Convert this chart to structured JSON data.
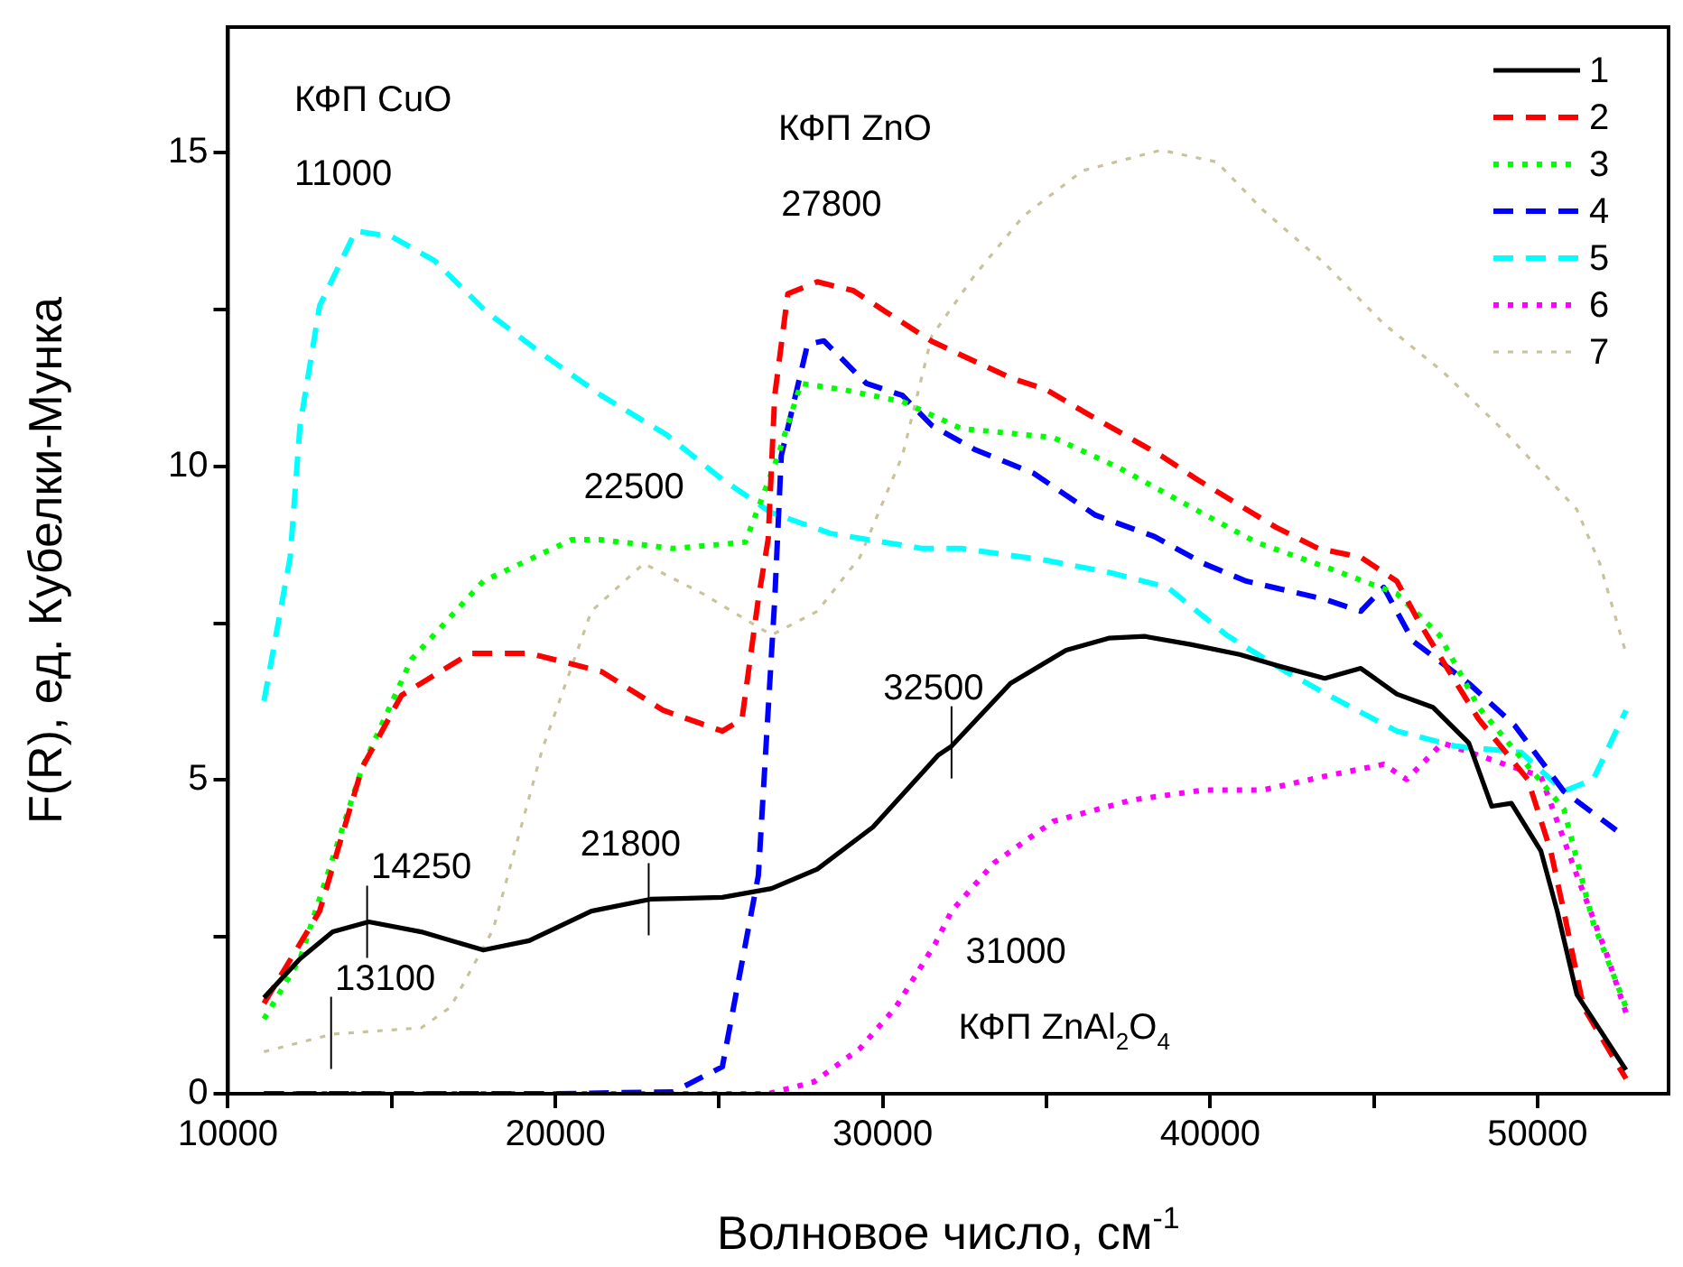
{
  "chart_data": {
    "type": "line",
    "xlabel": "Волновое число, см$^{-1}$",
    "ylabel": "F(R), ед. Кубелки-Мунка",
    "xlim": [
      10000,
      54000
    ],
    "ylim": [
      0,
      17
    ],
    "xticks": [
      10000,
      {
        "value": 15000,
        "label": null
      },
      20000,
      {
        "value": 25000,
        "label": null
      },
      30000,
      {
        "value": 35000,
        "label": null
      },
      40000,
      {
        "value": 45000,
        "label": null
      },
      50000
    ],
    "yticks": [
      0,
      {
        "value": 2.5,
        "label": null
      },
      5,
      {
        "value": 7.5,
        "label": null
      },
      10,
      {
        "value": 12.5,
        "label": null
      },
      15
    ],
    "grid": false,
    "legend": "top right",
    "series": [
      {
        "name": "1",
        "color": "#000000",
        "line_style": "solid",
        "x": [
          11100,
          12200,
          13200,
          14300,
          15900,
          17800,
          19200,
          21100,
          22900,
          25100,
          26600,
          28000,
          29700,
          31700,
          32100,
          33900,
          35600,
          36900,
          38000,
          39400,
          40900,
          42000,
          43500,
          44600,
          45700,
          46800,
          47900,
          48600,
          49200,
          50100,
          50600,
          51200,
          52700
        ],
        "values": [
          1.53,
          2.15,
          2.58,
          2.74,
          2.58,
          2.29,
          2.44,
          2.91,
          3.1,
          3.13,
          3.27,
          3.58,
          4.25,
          5.4,
          5.54,
          6.54,
          7.07,
          7.26,
          7.29,
          7.16,
          7.0,
          6.83,
          6.62,
          6.78,
          6.37,
          6.16,
          5.59,
          4.58,
          4.63,
          3.87,
          2.91,
          1.58,
          0.38
        ]
      },
      {
        "name": "2",
        "color": "#ff0000",
        "line_style": "dashed",
        "x": [
          11100,
          12800,
          14100,
          15300,
          17400,
          19200,
          21400,
          23300,
          25100,
          25700,
          26200,
          26500,
          26700,
          27100,
          28000,
          29100,
          30100,
          31500,
          33900,
          35000,
          36300,
          38500,
          39600,
          42000,
          43300,
          44600,
          45700,
          46400,
          47300,
          48200,
          49700,
          50400,
          50800,
          51400,
          52700
        ],
        "values": [
          1.44,
          2.91,
          5.2,
          6.35,
          7.02,
          7.02,
          6.73,
          6.11,
          5.78,
          5.97,
          7.89,
          8.84,
          11.13,
          12.75,
          12.94,
          12.8,
          12.46,
          11.99,
          11.41,
          11.22,
          10.82,
          10.17,
          9.79,
          9.03,
          8.69,
          8.55,
          8.17,
          7.5,
          6.73,
          5.97,
          5.01,
          3.87,
          2.91,
          1.38,
          0.24
        ]
      },
      {
        "name": "3",
        "color": "#00ff00",
        "line_style": "dotted",
        "x": [
          11100,
          12200,
          14100,
          15600,
          17800,
          20500,
          21400,
          23600,
          25800,
          26800,
          27500,
          28800,
          30600,
          32400,
          35200,
          37200,
          39200,
          41400,
          43500,
          45700,
          47000,
          48200,
          50800,
          51700,
          52700
        ],
        "values": [
          1.19,
          2.15,
          5.2,
          6.92,
          8.17,
          8.83,
          8.83,
          8.69,
          8.79,
          10.17,
          11.32,
          11.22,
          11.03,
          10.6,
          10.46,
          9.98,
          9.41,
          8.79,
          8.4,
          7.97,
          7.31,
          6.16,
          4.54,
          2.72,
          1.38
        ]
      },
      {
        "name": "4",
        "color": "#0000ff",
        "line_style": "dashed",
        "x": [
          11100,
          20000,
          23600,
          25100,
          26200,
          26700,
          26900,
          27700,
          28200,
          29500,
          30600,
          31500,
          32800,
          34600,
          36500,
          38300,
          39800,
          41100,
          43500,
          44600,
          45300,
          46200,
          47900,
          49300,
          50800,
          52400
        ],
        "values": [
          0,
          0,
          0.03,
          0.43,
          3.48,
          7.88,
          10.17,
          11.94,
          12.0,
          11.32,
          11.13,
          10.65,
          10.27,
          9.89,
          9.22,
          8.88,
          8.45,
          8.17,
          7.88,
          7.69,
          8.07,
          7.21,
          6.54,
          5.87,
          4.82,
          4.2
        ]
      },
      {
        "name": "5",
        "color": "#00ffff",
        "line_style": "dashed",
        "x": [
          11100,
          11900,
          12200,
          12800,
          13900,
          15000,
          16300,
          17900,
          19600,
          21400,
          23400,
          25100,
          26600,
          28400,
          31200,
          32400,
          35000,
          36900,
          38700,
          40500,
          42300,
          43800,
          45700,
          47500,
          49500,
          50800,
          51700,
          52700
        ],
        "values": [
          6.26,
          8.55,
          10.65,
          12.56,
          13.75,
          13.66,
          13.28,
          12.46,
          11.79,
          11.13,
          10.5,
          9.79,
          9.26,
          8.93,
          8.69,
          8.69,
          8.5,
          8.31,
          8.07,
          7.31,
          6.73,
          6.3,
          5.78,
          5.54,
          5.44,
          4.82,
          5.01,
          6.11
        ]
      },
      {
        "name": "6",
        "color": "#ff00ff",
        "line_style": "dotted",
        "x": [
          11100,
          20000,
          26500,
          27900,
          29300,
          30400,
          31600,
          32100,
          33400,
          35200,
          37600,
          39800,
          41600,
          43500,
          45300,
          46000,
          47100,
          49000,
          50100,
          51200,
          52100,
          52700
        ],
        "values": [
          0,
          0,
          0,
          0.19,
          0.72,
          1.38,
          2.39,
          2.91,
          3.68,
          4.34,
          4.68,
          4.84,
          4.84,
          5.06,
          5.25,
          5.01,
          5.59,
          5.25,
          5.06,
          3.48,
          2.24,
          1.29
        ]
      },
      {
        "name": "7",
        "color": "#c8c39b",
        "line_style": "dotted",
        "x": [
          11100,
          13200,
          15900,
          16800,
          18100,
          19600,
          21100,
          22700,
          24500,
          26600,
          28000,
          29300,
          30600,
          31500,
          32800,
          34300,
          36100,
          38500,
          40200,
          41600,
          43500,
          45300,
          47100,
          49000,
          51200,
          51900,
          52700
        ],
        "values": [
          0.67,
          0.95,
          1.05,
          1.38,
          2.62,
          5.49,
          7.69,
          8.45,
          7.97,
          7.31,
          7.69,
          8.55,
          10.17,
          12.08,
          13.04,
          13.99,
          14.71,
          15.04,
          14.85,
          14.09,
          13.23,
          12.27,
          11.51,
          10.55,
          9.31,
          8.45,
          7.02
        ]
      }
    ],
    "annotations": [
      "КФП CuO",
      "11000",
      "КФП ZnO",
      "27800",
      "22500",
      {
        "text": "32500",
        "x": 32100,
        "y": 5.6
      },
      {
        "text": "14250",
        "x": 14250,
        "y": 2.74
      },
      {
        "text": "21800",
        "x": 22850,
        "y": 3.1
      },
      {
        "text": "13100",
        "x": 13150,
        "y": 0.97
      },
      "31000",
      "КФП ZnAl$_{2}$O$_{4}$"
    ]
  }
}
